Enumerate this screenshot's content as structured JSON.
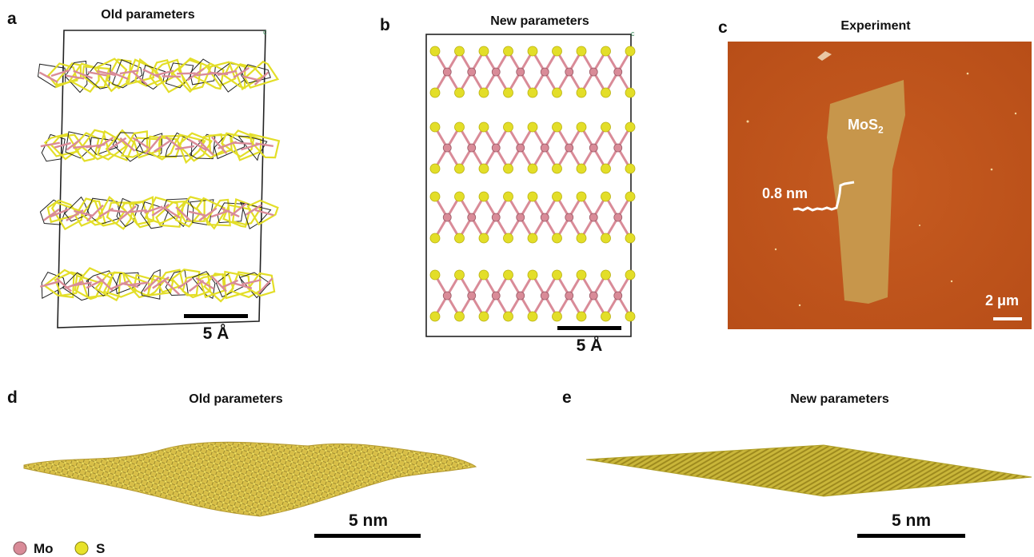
{
  "panels": [
    {
      "letter": "a",
      "title": "Old parameters"
    },
    {
      "letter": "b",
      "title": "New parameters"
    },
    {
      "letter": "c",
      "title": "Experiment"
    },
    {
      "letter": "d",
      "title": "Old parameters"
    },
    {
      "letter": "e",
      "title": "New parameters"
    }
  ],
  "scale_bars": {
    "a": "5 Å",
    "b": "5 Å",
    "c": "2 μm",
    "d": "5 nm",
    "e": "5 nm"
  },
  "afm": {
    "flake_label_main": "MoS",
    "flake_label_sub": "2",
    "height_label": "0.8 nm",
    "background_color": "#c2571e",
    "flake_color": "#c79a4e"
  },
  "legend": [
    {
      "label": "Mo",
      "color": "#d98b98"
    },
    {
      "label": "S",
      "color": "#e8e22a"
    }
  ],
  "cell_axis_labels": {
    "a": "c",
    "b": "c"
  },
  "colors": {
    "mo": "#d98b98",
    "s": "#e3de28",
    "s_dark": "#b8b010",
    "cell": "#222222"
  }
}
